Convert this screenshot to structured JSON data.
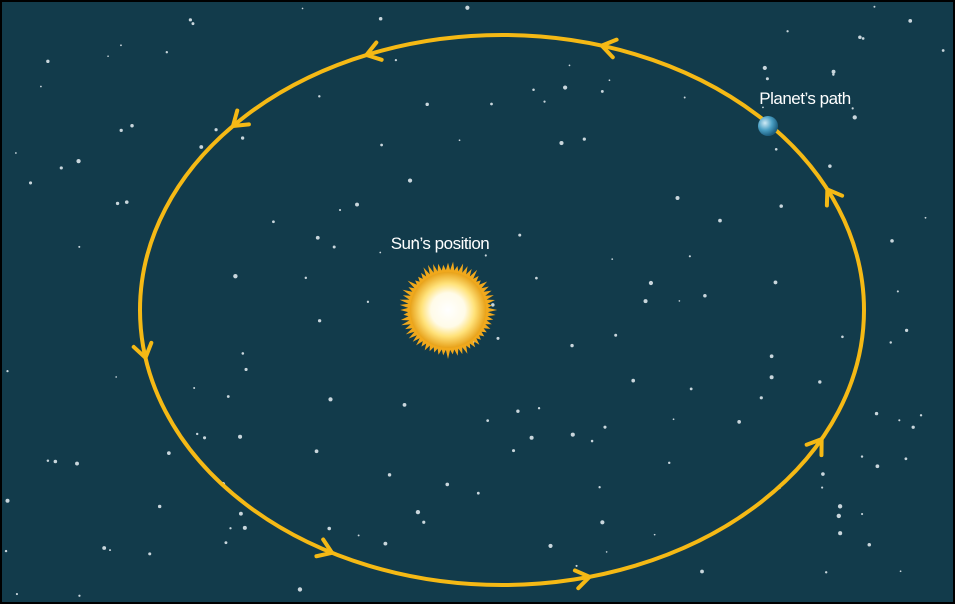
{
  "labels": {
    "sun": "Sun’s position",
    "planet": "Planet’s path"
  }
}
